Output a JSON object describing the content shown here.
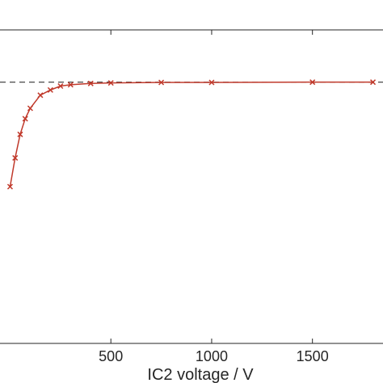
{
  "chart_data": {
    "type": "line",
    "title": "",
    "xlabel": "IC2 voltage / V",
    "ylabel": "",
    "xlim": [
      -50,
      1850
    ],
    "ylim": [
      0,
      1.2
    ],
    "x_ticks": [
      500,
      1000,
      1500
    ],
    "x_tick_labels": [
      "500",
      "1000",
      "1500"
    ],
    "grid": false,
    "reference_line": {
      "style": "dashed",
      "color": "#333333",
      "y": 1.0
    },
    "series": [
      {
        "color": "#c0392b",
        "marker": "x",
        "x": [
          0,
          25,
          50,
          75,
          100,
          150,
          200,
          250,
          300,
          400,
          500,
          750,
          1000,
          1500,
          1800
        ],
        "y": [
          0.6,
          0.71,
          0.8,
          0.86,
          0.9,
          0.95,
          0.97,
          0.985,
          0.99,
          0.995,
          0.997,
          0.999,
          0.999,
          1.0,
          1.0
        ]
      }
    ]
  }
}
